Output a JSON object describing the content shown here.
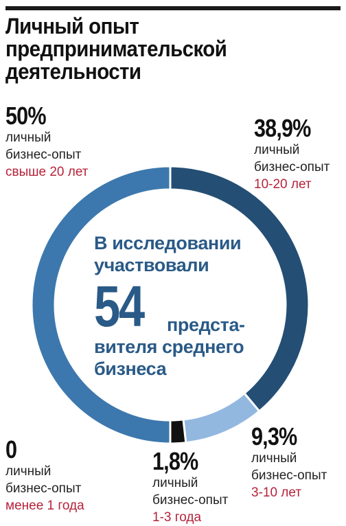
{
  "title": "Личный опыт предпринимательской деятельности",
  "center": {
    "line1": "В исследовании",
    "line2": "участвовали",
    "number": "54",
    "line3": "предста-",
    "line4": "вителя среднего",
    "line5": "бизнеса"
  },
  "labels": [
    {
      "pct": "50%",
      "line1": "личный",
      "line2": "бизнес-опыт",
      "accent": "свыше 20 лет"
    },
    {
      "pct": "38,9%",
      "line1": "личный",
      "line2": "бизнес-опыт",
      "accent": "10-20 лет"
    },
    {
      "pct": "9,3%",
      "line1": "личный",
      "line2": "бизнес-опыт",
      "accent": "3-10 лет"
    },
    {
      "pct": "1,8%",
      "line1": "личный",
      "line2": "бизнес-опыт",
      "accent": "1-3 года"
    },
    {
      "pct": "0",
      "line1": "личный",
      "line2": "бизнес-опыт",
      "accent": "менее 1 года"
    }
  ],
  "chart_data": {
    "type": "pie",
    "title": "Личный опыт предпринимательской деятельности",
    "categories": [
      "свыше 20 лет",
      "10-20 лет",
      "3-10 лет",
      "1-3 года",
      "менее 1 года"
    ],
    "values": [
      50,
      38.9,
      9.3,
      1.8,
      0
    ],
    "colors": [
      "#3c78ad",
      "#244e74",
      "#92b8e0",
      "#111111",
      "#ffffff"
    ],
    "style": "donut"
  }
}
